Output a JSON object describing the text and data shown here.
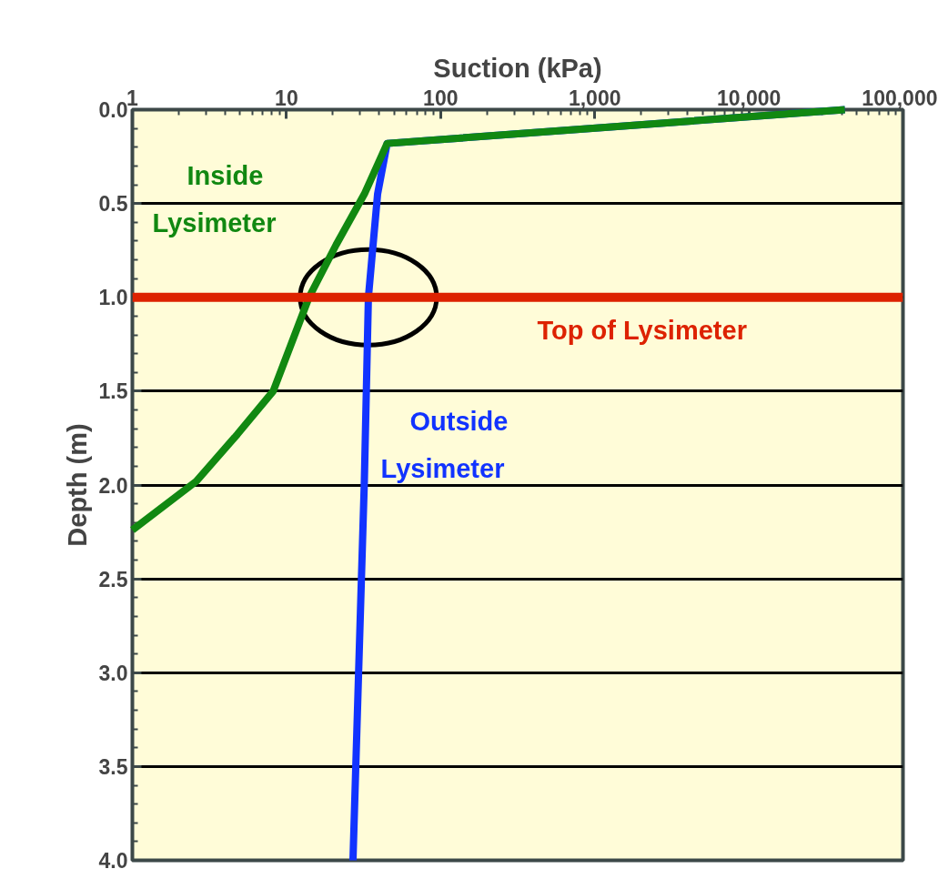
{
  "chart_data": {
    "type": "line",
    "xlabel": "Suction (kPa)",
    "ylabel": "Depth (m)",
    "log": "x",
    "xlim": [
      1,
      100000
    ],
    "ylim": [
      4.0,
      0.0
    ],
    "xticks": [
      1,
      10,
      100,
      {
        "value": 1000,
        "label": "1,000"
      },
      {
        "value": 10000,
        "label": "10,000"
      },
      {
        "value": 100000,
        "label": "100,000"
      }
    ],
    "yticks": [
      {
        "value": 0,
        "label": "0.0"
      },
      {
        "value": 0.5,
        "label": "0.5"
      },
      {
        "value": 1,
        "label": "1.0"
      },
      {
        "value": 1.5,
        "label": "1.5"
      },
      {
        "value": 2,
        "label": "2.0"
      },
      {
        "value": 2.5,
        "label": "2.5"
      },
      {
        "value": 3,
        "label": "3.0"
      },
      {
        "value": 3.5,
        "label": "3.5"
      },
      {
        "value": 4,
        "label": "4.0"
      }
    ],
    "grid": "y",
    "series": [
      {
        "name": "Outside Lysimeter",
        "color": "#1133ff",
        "x": [
          42000,
          45,
          39,
          34,
          32,
          27
        ],
        "values": [
          0.0,
          0.18,
          0.45,
          1.0,
          1.98,
          4.0
        ]
      },
      {
        "name": "Inside Lysimeter",
        "color": "#118811",
        "x": [
          42000,
          45,
          32,
          21,
          14,
          8.2,
          4.8,
          2.6,
          1
        ],
        "values": [
          0.0,
          0.18,
          0.45,
          0.72,
          1.0,
          1.5,
          1.73,
          1.98,
          2.24
        ]
      }
    ],
    "ref_lines": [
      {
        "axis": "y",
        "value": 1.0,
        "label": "Top of Lysimeter",
        "color": "#dd2200"
      }
    ]
  }
}
